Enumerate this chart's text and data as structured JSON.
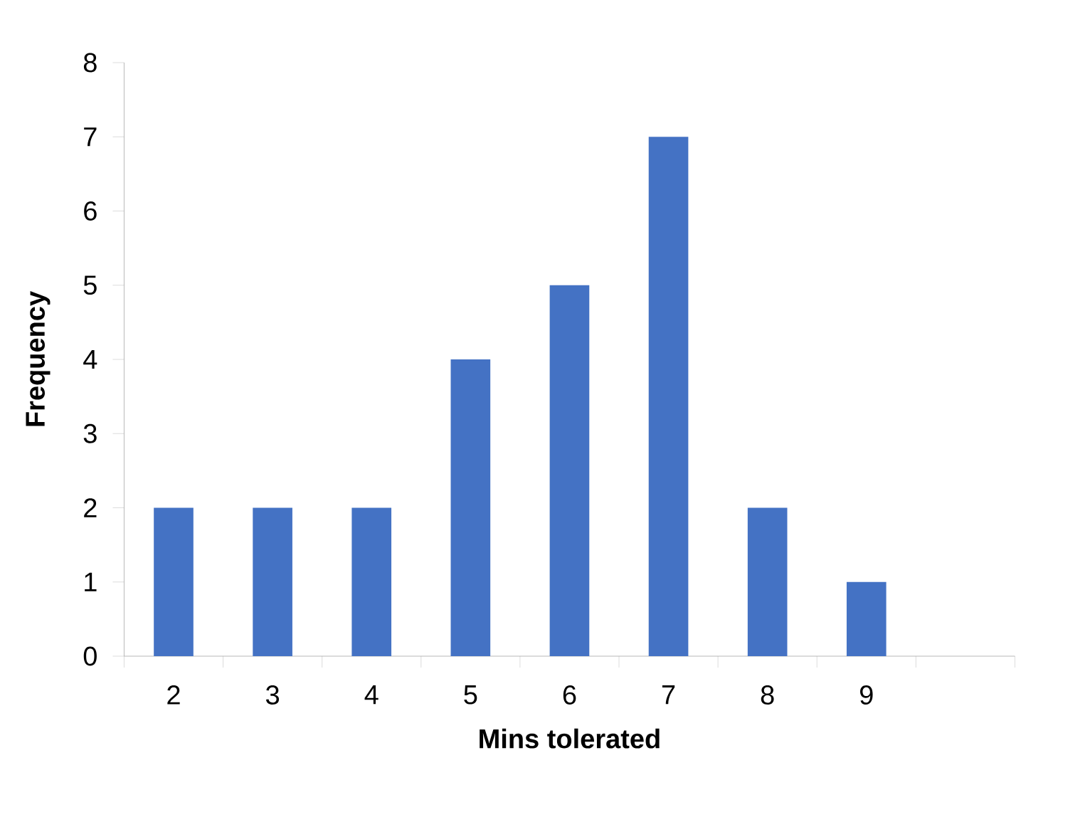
{
  "chart_data": {
    "type": "bar",
    "xlabel": "Mins tolerated",
    "ylabel": "Frequency",
    "categories": [
      "2",
      "3",
      "4",
      "5",
      "6",
      "7",
      "8",
      "9",
      null
    ],
    "values": [
      2,
      2,
      2,
      4,
      5,
      7,
      2,
      1,
      null
    ],
    "color": "#4472c4",
    "ylim": [
      0,
      8
    ],
    "yticks": [
      0,
      1,
      2,
      3,
      4,
      5,
      6,
      7,
      8
    ]
  }
}
